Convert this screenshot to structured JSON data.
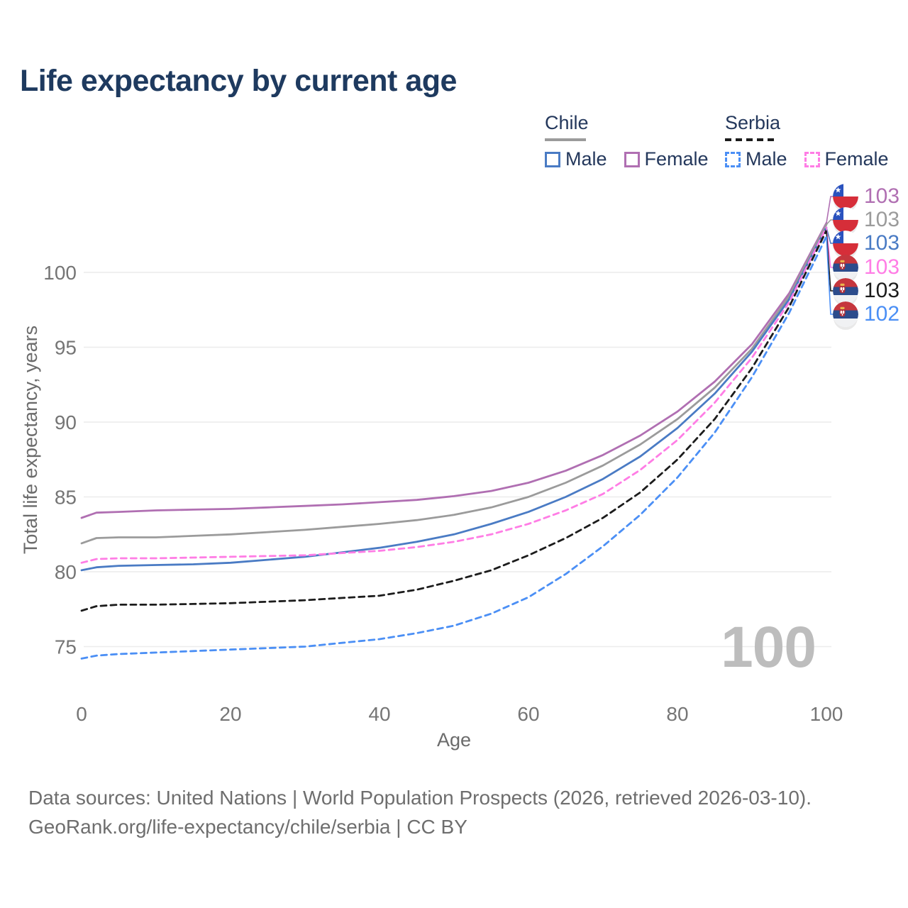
{
  "title": "Life expectancy by current age",
  "legend": {
    "groups": [
      {
        "label": "Chile",
        "line_style": "solid",
        "underline_color": "#9b9b9b",
        "items": [
          {
            "label": "Male",
            "color": "#4a7bc4"
          },
          {
            "label": "Female",
            "color": "#b06fb2"
          }
        ]
      },
      {
        "label": "Serbia",
        "line_style": "dashed",
        "underline_color": "#1c1c1c",
        "items": [
          {
            "label": "Male",
            "color": "#4b8ff5"
          },
          {
            "label": "Female",
            "color": "#ff7de5"
          }
        ]
      }
    ]
  },
  "chart_data": {
    "type": "line",
    "title": "Life expectancy by current age",
    "xlabel": "Age",
    "ylabel": "Total life expectancy, years",
    "x_ticks": [
      0,
      20,
      40,
      60,
      80,
      100
    ],
    "y_ticks": [
      75,
      80,
      85,
      90,
      95,
      100
    ],
    "xlim": [
      0,
      100
    ],
    "ylim": [
      73,
      104
    ],
    "grid": "horizontal-only",
    "legend_position": "top-right",
    "x": [
      0,
      2,
      5,
      10,
      15,
      20,
      25,
      30,
      35,
      40,
      45,
      50,
      55,
      60,
      65,
      70,
      75,
      80,
      85,
      90,
      95,
      100
    ],
    "series": [
      {
        "name": "Chile Female",
        "country": "Chile",
        "color": "#b06fb2",
        "dash": "solid",
        "values": [
          83.6,
          83.95,
          84.0,
          84.1,
          84.15,
          84.2,
          84.3,
          84.4,
          84.5,
          84.65,
          84.8,
          85.05,
          85.4,
          85.95,
          86.75,
          87.8,
          89.1,
          90.7,
          92.7,
          95.2,
          98.6,
          103.3
        ]
      },
      {
        "name": "Chile Both sexes",
        "country": "Chile",
        "color": "#9b9b9b",
        "dash": "solid",
        "values": [
          81.9,
          82.25,
          82.3,
          82.3,
          82.4,
          82.5,
          82.65,
          82.8,
          83.0,
          83.2,
          83.45,
          83.8,
          84.3,
          85.0,
          85.95,
          87.1,
          88.5,
          90.2,
          92.3,
          94.9,
          98.4,
          103.2
        ]
      },
      {
        "name": "Chile Male",
        "country": "Chile",
        "color": "#4a7bc4",
        "dash": "solid",
        "values": [
          80.1,
          80.3,
          80.4,
          80.45,
          80.5,
          80.6,
          80.8,
          81.0,
          81.3,
          81.6,
          82.0,
          82.5,
          83.2,
          84.0,
          85.0,
          86.2,
          87.7,
          89.6,
          91.9,
          94.7,
          98.2,
          103.0
        ]
      },
      {
        "name": "Serbia Female",
        "country": "Serbia",
        "color": "#ff7de5",
        "dash": "dashed",
        "values": [
          80.6,
          80.85,
          80.9,
          80.9,
          80.95,
          81.0,
          81.05,
          81.1,
          81.25,
          81.4,
          81.65,
          82.0,
          82.5,
          83.2,
          84.1,
          85.2,
          86.8,
          88.8,
          91.3,
          94.3,
          98.0,
          103.0
        ]
      },
      {
        "name": "Serbia Both sexes",
        "country": "Serbia",
        "color": "#1c1c1c",
        "dash": "dashed",
        "values": [
          77.4,
          77.7,
          77.8,
          77.8,
          77.85,
          77.9,
          78.0,
          78.1,
          78.25,
          78.4,
          78.8,
          79.4,
          80.1,
          81.1,
          82.25,
          83.6,
          85.3,
          87.5,
          90.2,
          93.6,
          97.7,
          102.8
        ]
      },
      {
        "name": "Serbia Male",
        "country": "Serbia",
        "color": "#4b8ff5",
        "dash": "dashed",
        "values": [
          74.2,
          74.4,
          74.5,
          74.6,
          74.7,
          74.8,
          74.9,
          75.0,
          75.25,
          75.5,
          75.9,
          76.4,
          77.2,
          78.3,
          79.85,
          81.7,
          83.8,
          86.3,
          89.3,
          93.0,
          97.3,
          102.4
        ]
      }
    ]
  },
  "end_labels": {
    "rows": [
      {
        "flag": "chile",
        "value": "103",
        "color": "#b06fb2"
      },
      {
        "flag": "chile",
        "value": "103",
        "color": "#9b9b9b"
      },
      {
        "flag": "chile",
        "value": "103",
        "color": "#4a7bc4"
      },
      {
        "flag": "serbia",
        "value": "103",
        "color": "#ff7de5"
      },
      {
        "flag": "serbia",
        "value": "103",
        "color": "#1c1c1c"
      },
      {
        "flag": "serbia",
        "value": "102",
        "color": "#4b8ff5"
      }
    ]
  },
  "watermark": "100",
  "footer": {
    "line1": "Data sources: United Nations | World Population Prospects (2026, retrieved 2026-03-10).",
    "line2": "GeoRank.org/life-expectancy/chile/serbia | CC BY"
  },
  "colors": {
    "title": "#1e3a5f",
    "axis_text": "#757575",
    "grid": "#ececec",
    "watermark": "#bdbdbd"
  }
}
